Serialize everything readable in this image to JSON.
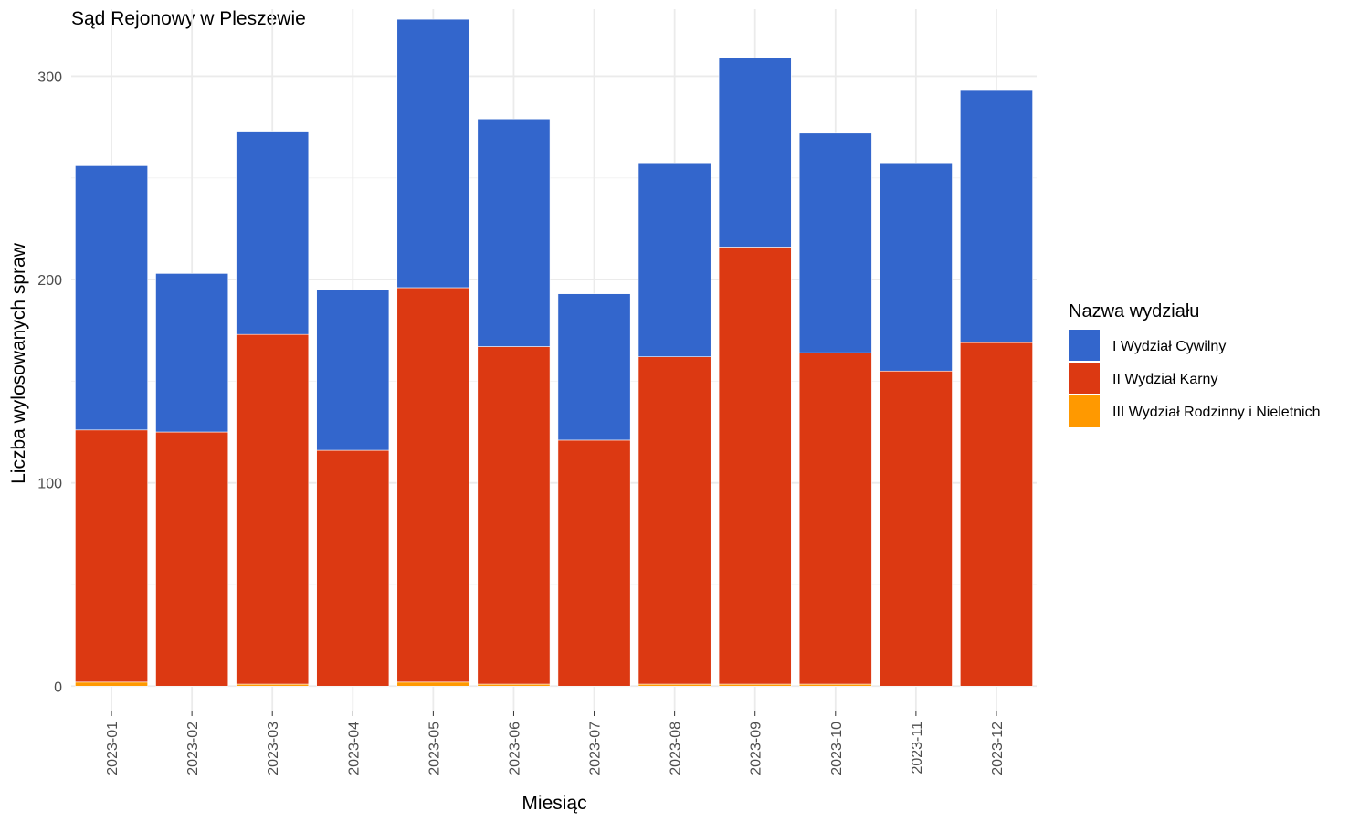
{
  "chart_data": {
    "type": "bar",
    "stacked": true,
    "title": "Sąd Rejonowy w Pleszewie",
    "xlabel": "Miesiąc",
    "ylabel": "Liczba wylosowanych spraw",
    "ylim": [
      -12,
      333
    ],
    "yticks": [
      0,
      100,
      200,
      300
    ],
    "grid": true,
    "legend": {
      "title": "Nazwa wydziału",
      "placement": "right"
    },
    "categories": [
      "2023-01",
      "2023-02",
      "2023-03",
      "2023-04",
      "2023-05",
      "2023-06",
      "2023-07",
      "2023-08",
      "2023-09",
      "2023-10",
      "2023-11",
      "2023-12"
    ],
    "series": [
      {
        "name": "III Wydział Rodzinny i Nieletnich",
        "color": "#ff9900",
        "values": [
          2,
          0,
          1,
          0,
          2,
          1,
          0,
          1,
          1,
          1,
          0,
          0
        ]
      },
      {
        "name": "II Wydział Karny",
        "color": "#dc3912",
        "values": [
          124,
          125,
          172,
          116,
          194,
          166,
          121,
          161,
          215,
          163,
          155,
          169
        ]
      },
      {
        "name": "I Wydział Cywilny",
        "color": "#3366cc",
        "values": [
          130,
          78,
          100,
          79,
          132,
          112,
          72,
          95,
          93,
          108,
          102,
          124
        ]
      }
    ],
    "legend_order": [
      "I Wydział Cywilny",
      "II Wydział Karny",
      "III Wydział Rodzinny i Nieletnich"
    ]
  }
}
